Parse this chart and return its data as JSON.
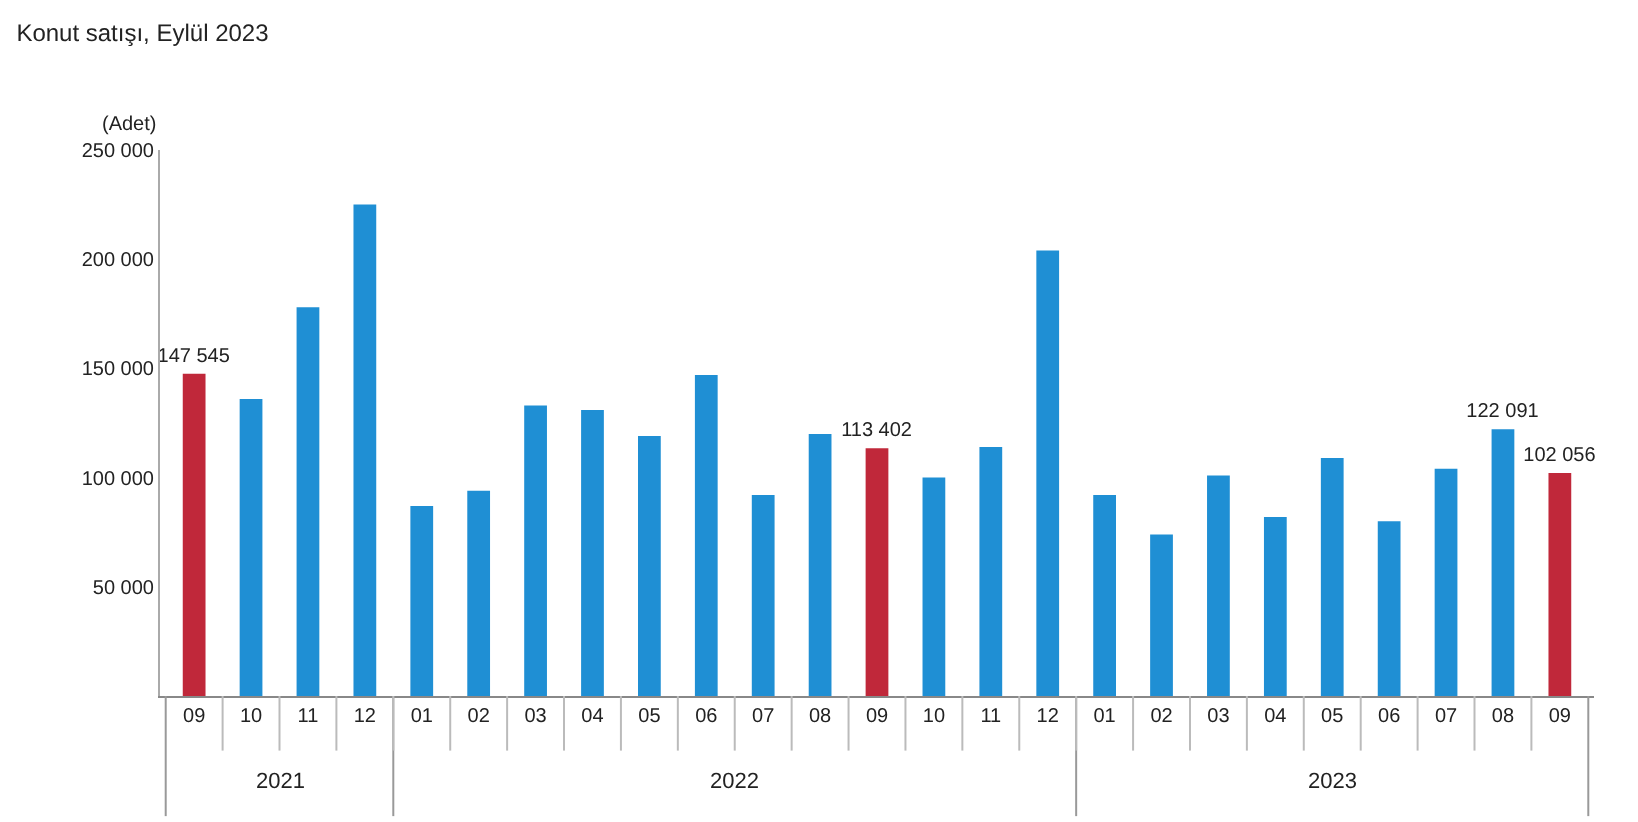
{
  "chart_data": {
    "type": "bar",
    "title": "Konut satışı, Eylül 2023",
    "ylabel": "(Adet)",
    "categories": [
      "09",
      "10",
      "11",
      "12",
      "01",
      "02",
      "03",
      "04",
      "05",
      "06",
      "07",
      "08",
      "09",
      "10",
      "11",
      "12",
      "01",
      "02",
      "03",
      "04",
      "05",
      "06",
      "07",
      "08",
      "09"
    ],
    "values": [
      147545,
      136000,
      178000,
      225000,
      87000,
      94000,
      133000,
      131000,
      119000,
      147000,
      92000,
      120000,
      113402,
      100000,
      114000,
      204000,
      92000,
      74000,
      101000,
      82000,
      109000,
      80000,
      104000,
      122091,
      102056
    ],
    "value_labels": [
      "147 545",
      null,
      null,
      null,
      null,
      null,
      null,
      null,
      null,
      null,
      null,
      null,
      "113 402",
      null,
      null,
      null,
      null,
      null,
      null,
      null,
      null,
      null,
      null,
      "122 091",
      "102 056"
    ],
    "colors": [
      "#c0283a",
      "#1f8fd4",
      "#1f8fd4",
      "#1f8fd4",
      "#1f8fd4",
      "#1f8fd4",
      "#1f8fd4",
      "#1f8fd4",
      "#1f8fd4",
      "#1f8fd4",
      "#1f8fd4",
      "#1f8fd4",
      "#c0283a",
      "#1f8fd4",
      "#1f8fd4",
      "#1f8fd4",
      "#1f8fd4",
      "#1f8fd4",
      "#1f8fd4",
      "#1f8fd4",
      "#1f8fd4",
      "#1f8fd4",
      "#1f8fd4",
      "#1f8fd4",
      "#c0283a"
    ],
    "annotations": [
      "2021",
      "2022",
      "2023"
    ],
    "ylim": [
      0,
      250000
    ],
    "yticks": [
      {
        "value": 50000,
        "label": "50 000"
      },
      {
        "value": 100000,
        "label": "100 000"
      },
      {
        "value": 150000,
        "label": "150 000"
      },
      {
        "value": 200000,
        "label": "200 000"
      },
      {
        "value": 250000,
        "label": "250 000"
      }
    ],
    "grid": false,
    "legend": false
  }
}
